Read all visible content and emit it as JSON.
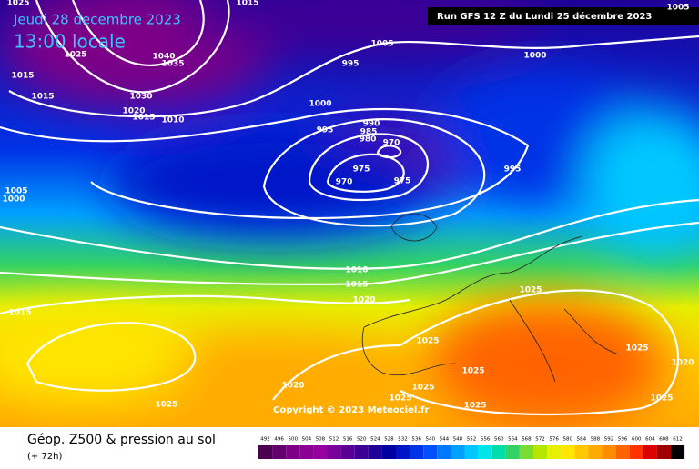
{
  "header": {
    "date": "Jeudi 28 decembre 2023",
    "time": "13:00 locale",
    "run": "Run GFS 12 Z du Lundi 25 décembre 2023"
  },
  "copyright": "Copyright © 2023 Meteociel.fr",
  "footer": {
    "title": "Géop. Z500 & pression au sol",
    "lead": "(+ 72h)"
  },
  "isobar_labels": [
    1025,
    1015,
    1005,
    1005,
    1000,
    1025,
    1040,
    1035,
    1015,
    995,
    1015,
    1030,
    1000,
    1020,
    1015,
    1010,
    990,
    995,
    985,
    980,
    970,
    995,
    975,
    970,
    975,
    1005,
    1000,
    1010,
    1015,
    1020,
    1025,
    1015,
    1025,
    1025,
    1020,
    1025,
    1025,
    1020,
    1025,
    1025,
    1025,
    1025
  ],
  "scale": {
    "labels": [
      492,
      496,
      500,
      504,
      508,
      512,
      516,
      520,
      524,
      528,
      532,
      536,
      540,
      544,
      548,
      552,
      556,
      560,
      564,
      568,
      572,
      576,
      580,
      584,
      588,
      592,
      596,
      600,
      604,
      608,
      612
    ],
    "colors": [
      "#4b0050",
      "#64006e",
      "#7d0087",
      "#8c0096",
      "#9600a0",
      "#78009b",
      "#5a0096",
      "#3c0096",
      "#1e0096",
      "#0000a0",
      "#0014c8",
      "#0032e6",
      "#0050ff",
      "#0078ff",
      "#00a0ff",
      "#00c8ff",
      "#00e6e6",
      "#00dcaa",
      "#32d264",
      "#78dc32",
      "#b4e600",
      "#e6f000",
      "#ffe600",
      "#ffc800",
      "#ffaa00",
      "#ff8c00",
      "#ff6400",
      "#ff3200",
      "#dc0000",
      "#a00000",
      "#000000"
    ]
  }
}
